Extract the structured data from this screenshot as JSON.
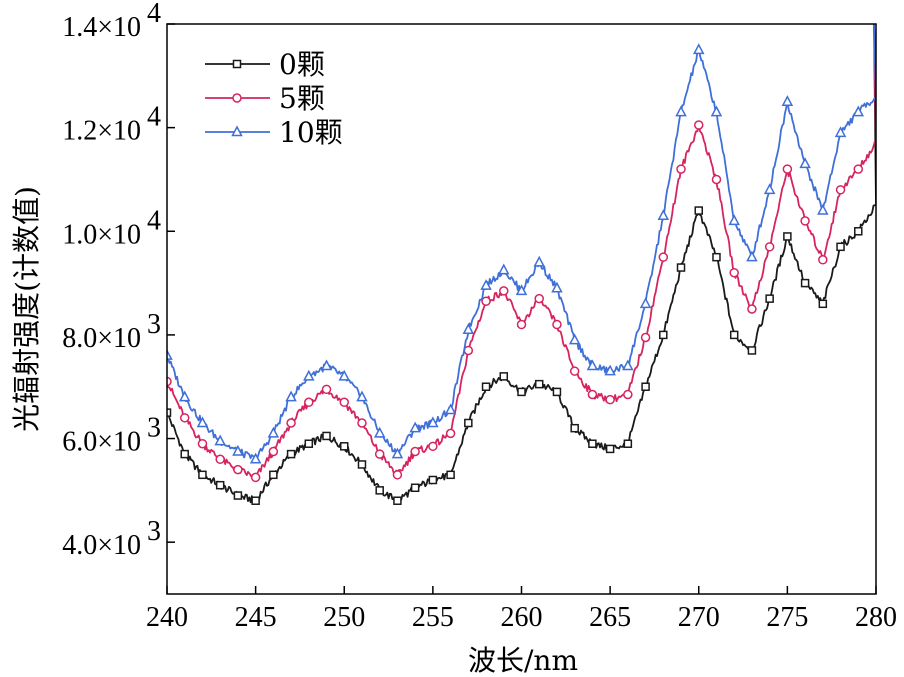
{
  "chart_data": {
    "type": "line",
    "title": "",
    "xlabel": "波长/nm",
    "ylabel": "光辐射强度(计数值)",
    "xlim": [
      240,
      280
    ],
    "ylim": [
      3000,
      14000
    ],
    "x_ticks": [
      240,
      245,
      250,
      255,
      260,
      265,
      270,
      275,
      280
    ],
    "x_tick_labels": [
      "240",
      "245",
      "250",
      "255",
      "260",
      "265",
      "270",
      "275",
      "280"
    ],
    "y_ticks": [
      {
        "value": 4000,
        "mant": "4.0×10",
        "exp": "3"
      },
      {
        "value": 6000,
        "mant": "6.0×10",
        "exp": "3"
      },
      {
        "value": 8000,
        "mant": "8.0×10",
        "exp": "3"
      },
      {
        "value": 10000,
        "mant": "1.0×10",
        "exp": "4"
      },
      {
        "value": 12000,
        "mant": "1.2×10",
        "exp": "4"
      },
      {
        "value": 14000,
        "mant": "1.4×10",
        "exp": "4"
      }
    ],
    "legend_position": "top-left",
    "x": [
      240,
      241,
      242,
      243,
      244,
      245,
      246,
      247,
      248,
      249,
      250,
      251,
      252,
      253,
      254,
      255,
      256,
      257,
      258,
      259,
      260,
      261,
      262,
      263,
      264,
      265,
      266,
      267,
      268,
      269,
      270,
      271,
      272,
      273,
      274,
      275,
      276,
      277,
      278,
      279,
      280
    ],
    "series": [
      {
        "name": "0颗",
        "color": "#1a1a1a",
        "marker": "square",
        "values": [
          6500,
          5700,
          5300,
          5100,
          4900,
          4800,
          5300,
          5700,
          5900,
          6050,
          5850,
          5500,
          5000,
          4800,
          5050,
          5200,
          5300,
          6300,
          7000,
          7200,
          6900,
          7050,
          6900,
          6200,
          5900,
          5800,
          5900,
          7000,
          8000,
          9300,
          10400,
          9500,
          8000,
          7700,
          8700,
          9900,
          9000,
          8600,
          9700,
          10000,
          10500
        ]
      },
      {
        "name": "5颗",
        "color": "#d6245e",
        "marker": "circle",
        "values": [
          7100,
          6400,
          5900,
          5600,
          5400,
          5250,
          5750,
          6300,
          6700,
          6950,
          6700,
          6300,
          5700,
          5300,
          5750,
          5850,
          6100,
          7700,
          8650,
          8850,
          8200,
          8700,
          8200,
          7300,
          6850,
          6750,
          6850,
          7950,
          9500,
          11200,
          12050,
          11000,
          9200,
          8500,
          9700,
          11200,
          10200,
          9450,
          10800,
          11200,
          11700
        ]
      },
      {
        "name": "10颗",
        "color": "#3f6fd8",
        "marker": "triangle",
        "values": [
          7600,
          6800,
          6300,
          5950,
          5750,
          5600,
          6100,
          6800,
          7200,
          7400,
          7200,
          6800,
          6100,
          5700,
          6200,
          6300,
          6550,
          8100,
          8950,
          9250,
          8850,
          9400,
          8900,
          7900,
          7400,
          7300,
          7400,
          8600,
          10300,
          12300,
          13500,
          12300,
          10200,
          9500,
          10800,
          12500,
          11300,
          10400,
          11900,
          12300,
          12600
        ]
      }
    ]
  }
}
